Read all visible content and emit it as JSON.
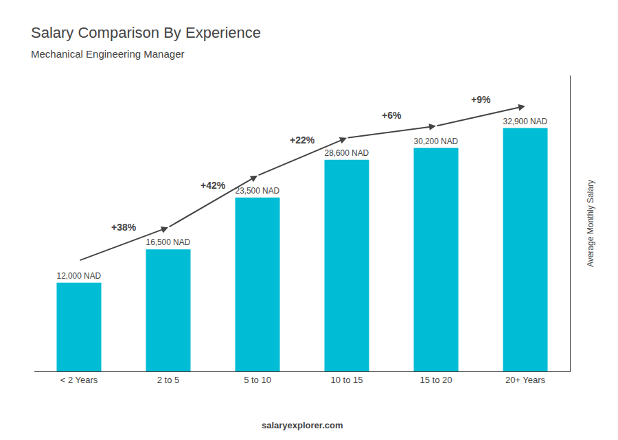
{
  "chart_data": {
    "type": "bar",
    "title": "Salary Comparison By Experience",
    "subtitle": "Mechanical Engineering Manager",
    "categories": [
      "< 2 Years",
      "2 to 5",
      "5 to 10",
      "10 to 15",
      "15 to 20",
      "20+ Years"
    ],
    "values": [
      12000,
      16500,
      23500,
      28600,
      30200,
      32900
    ],
    "value_labels": [
      "12,000 NAD",
      "16,500 NAD",
      "23,500 NAD",
      "28,600 NAD",
      "30,200 NAD",
      "32,900 NAD"
    ],
    "data_labels": true,
    "color": "#00bcd4",
    "ylabel": "Average Monthly Salary",
    "ylim": [
      0,
      40000
    ],
    "tick_labels": "x",
    "grid": false,
    "annotations": [
      "+38%",
      "+42%",
      "+22%",
      "+6%",
      "+9%"
    ],
    "footer": "salaryexplorer.com"
  }
}
